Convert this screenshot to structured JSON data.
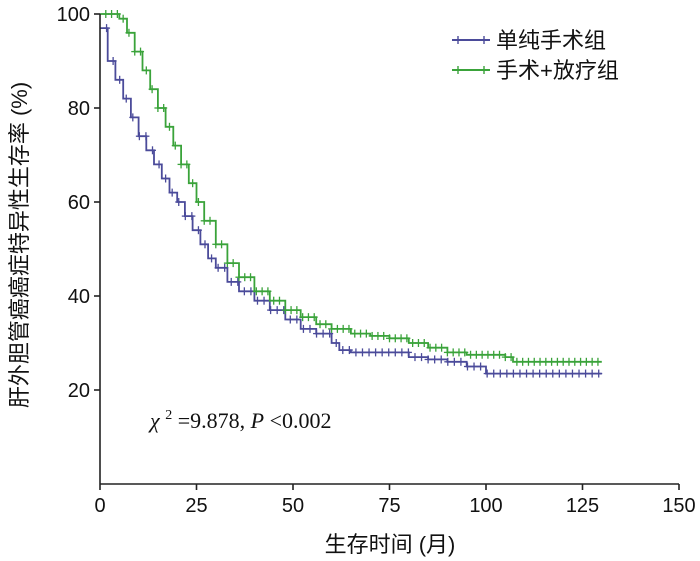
{
  "chart_data": {
    "type": "line",
    "title": "",
    "xlabel": "生存时间 (月)",
    "ylabel": "肝外胆管癌癌症特异性生存率 (%)",
    "xlim": [
      0,
      150
    ],
    "ylim": [
      0,
      100
    ],
    "x_ticks": [
      "0",
      "25",
      "50",
      "75",
      "100",
      "125",
      "150"
    ],
    "y_ticks": [
      "20",
      "40",
      "60",
      "80",
      "100"
    ],
    "grid": false,
    "legend_position": "top-right",
    "annotation": {
      "chi": "χ",
      "sup": "2",
      "rest": "=9.878, ",
      "p": "P",
      "tail": "<0.002"
    },
    "series": [
      {
        "name": "单纯手术组",
        "color": "#4b4b9a",
        "x": [
          0,
          2,
          4,
          6,
          8,
          10,
          12,
          14,
          16,
          18,
          20,
          22,
          24,
          26,
          28,
          30,
          33,
          36,
          40,
          44,
          48,
          52,
          56,
          60,
          62,
          65,
          70,
          75,
          80,
          85,
          90,
          95,
          100,
          105,
          110,
          115,
          120,
          125,
          130
        ],
        "y": [
          97,
          90,
          86,
          82,
          78,
          74,
          71,
          68,
          65,
          62,
          60,
          57,
          54,
          51,
          48,
          46,
          43,
          41,
          39,
          37,
          35,
          33,
          32,
          30,
          28.5,
          28,
          28,
          28,
          27,
          26.5,
          26,
          25,
          23.5,
          23.5,
          23.5,
          23.5,
          23.5,
          23.5,
          23.5
        ]
      },
      {
        "name": "手术+放疗组",
        "color": "#3aa33a",
        "x": [
          0,
          3,
          5,
          7,
          9,
          11,
          13,
          15,
          17,
          19,
          21,
          23,
          25,
          27,
          30,
          33,
          36,
          40,
          44,
          48,
          52,
          56,
          60,
          65,
          70,
          75,
          80,
          85,
          90,
          95,
          100,
          105,
          107,
          110,
          115,
          120,
          125,
          130
        ],
        "y": [
          100,
          100,
          99,
          96,
          92,
          88,
          84,
          80,
          76,
          72,
          68,
          64,
          60,
          56,
          51,
          47,
          44,
          41,
          39,
          37,
          35.5,
          34,
          33,
          32,
          31.5,
          31,
          30,
          29,
          28,
          27.5,
          27.5,
          27,
          26,
          26,
          26,
          26,
          26,
          26
        ]
      }
    ]
  }
}
